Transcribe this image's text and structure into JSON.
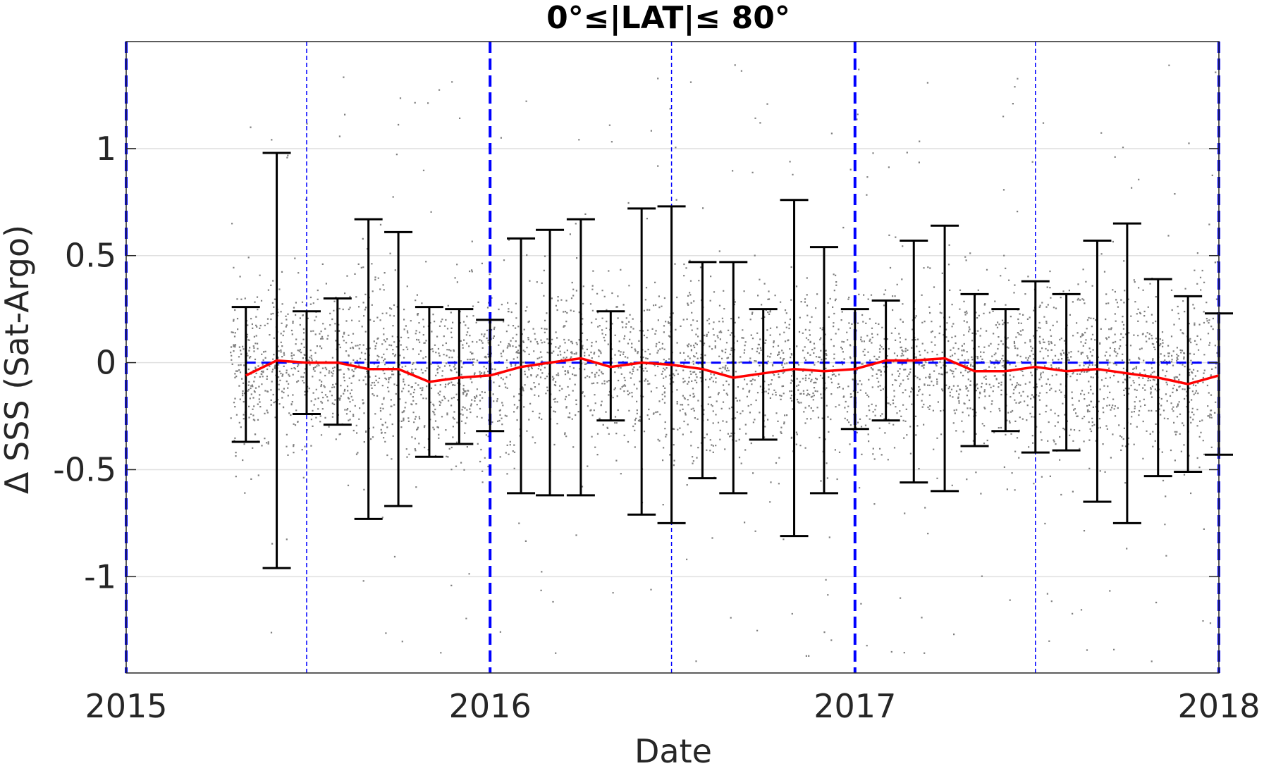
{
  "chart_data": {
    "type": "scatter",
    "title": "0°≤|LAT|≤ 80°",
    "xlabel": "Date",
    "ylabel": "Δ SSS (Sat-Argo)",
    "xlim": [
      "2015-01-01",
      "2018-01-01"
    ],
    "ylim": [
      -1.45,
      1.5
    ],
    "x_ticks": [
      "2015",
      "2016",
      "2017",
      "2018"
    ],
    "y_ticks": [
      {
        "value": 1,
        "label": "1"
      },
      {
        "value": 0.5,
        "label": "0.5"
      },
      {
        "value": 0,
        "label": "0"
      },
      {
        "value": -0.5,
        "label": "-0.5"
      },
      {
        "value": -1,
        "label": "-1"
      }
    ],
    "grid": "horizontal",
    "colors": {
      "scatter": "#7f7f7f",
      "mean_line": "#ff0000",
      "error_bars": "#000000",
      "reference_lines": "#0000ff",
      "grid": "#e0e0e0",
      "axes": "#262626"
    },
    "reference_lines": {
      "vertical_thick": [
        "2015-01-01",
        "2016-01-01",
        "2017-01-01",
        "2018-01-01"
      ],
      "vertical_thin": [
        "2015-07-01",
        "2016-07-01",
        "2017-07-01"
      ],
      "horizontal_zero": {
        "y": 0,
        "x_start": "2015-05-01",
        "x_end": "2018-01-01"
      }
    },
    "scatter_cloud": {
      "x_start": "2015-04-15",
      "x_end": "2018-01-01",
      "core_half_width": 0.35,
      "outlier_range": [
        -1.4,
        1.4
      ]
    },
    "series": [
      {
        "type": "line",
        "values": [
          {
            "x": "2015-05-01",
            "y": -0.06
          },
          {
            "x": "2015-06-01",
            "y": 0.01
          },
          {
            "x": "2015-07-01",
            "y": 0.0
          },
          {
            "x": "2015-08-01",
            "y": 0.0
          },
          {
            "x": "2015-09-01",
            "y": -0.03
          },
          {
            "x": "2015-10-01",
            "y": -0.03
          },
          {
            "x": "2015-11-01",
            "y": -0.09
          },
          {
            "x": "2015-12-01",
            "y": -0.07
          },
          {
            "x": "2016-01-01",
            "y": -0.06
          },
          {
            "x": "2016-02-01",
            "y": -0.02
          },
          {
            "x": "2016-03-01",
            "y": 0.0
          },
          {
            "x": "2016-04-01",
            "y": 0.02
          },
          {
            "x": "2016-05-01",
            "y": -0.02
          },
          {
            "x": "2016-06-01",
            "y": 0.0
          },
          {
            "x": "2016-07-01",
            "y": -0.01
          },
          {
            "x": "2016-08-01",
            "y": -0.03
          },
          {
            "x": "2016-09-01",
            "y": -0.07
          },
          {
            "x": "2016-10-01",
            "y": -0.05
          },
          {
            "x": "2016-11-01",
            "y": -0.03
          },
          {
            "x": "2016-12-01",
            "y": -0.04
          },
          {
            "x": "2017-01-01",
            "y": -0.03
          },
          {
            "x": "2017-02-01",
            "y": 0.01
          },
          {
            "x": "2017-03-01",
            "y": 0.01
          },
          {
            "x": "2017-04-01",
            "y": 0.02
          },
          {
            "x": "2017-05-01",
            "y": -0.04
          },
          {
            "x": "2017-06-01",
            "y": -0.04
          },
          {
            "x": "2017-07-01",
            "y": -0.02
          },
          {
            "x": "2017-08-01",
            "y": -0.04
          },
          {
            "x": "2017-09-01",
            "y": -0.03
          },
          {
            "x": "2017-10-01",
            "y": -0.05
          },
          {
            "x": "2017-11-01",
            "y": -0.07
          },
          {
            "x": "2017-12-01",
            "y": -0.1
          },
          {
            "x": "2018-01-01",
            "y": -0.06
          }
        ]
      },
      {
        "type": "errorbar",
        "values": [
          {
            "x": "2015-05-01",
            "low": -0.37,
            "high": 0.26
          },
          {
            "x": "2015-06-01",
            "low": -0.96,
            "high": 0.98
          },
          {
            "x": "2015-07-01",
            "low": -0.24,
            "high": 0.24
          },
          {
            "x": "2015-08-01",
            "low": -0.29,
            "high": 0.3
          },
          {
            "x": "2015-09-01",
            "low": -0.73,
            "high": 0.67
          },
          {
            "x": "2015-10-01",
            "low": -0.67,
            "high": 0.61
          },
          {
            "x": "2015-11-01",
            "low": -0.44,
            "high": 0.26
          },
          {
            "x": "2015-12-01",
            "low": -0.38,
            "high": 0.25
          },
          {
            "x": "2016-01-01",
            "low": -0.32,
            "high": 0.2
          },
          {
            "x": "2016-02-01",
            "low": -0.61,
            "high": 0.58
          },
          {
            "x": "2016-03-01",
            "low": -0.62,
            "high": 0.62
          },
          {
            "x": "2016-04-01",
            "low": -0.62,
            "high": 0.67
          },
          {
            "x": "2016-05-01",
            "low": -0.27,
            "high": 0.24
          },
          {
            "x": "2016-06-01",
            "low": -0.71,
            "high": 0.72
          },
          {
            "x": "2016-07-01",
            "low": -0.75,
            "high": 0.73
          },
          {
            "x": "2016-08-01",
            "low": -0.54,
            "high": 0.47
          },
          {
            "x": "2016-09-01",
            "low": -0.61,
            "high": 0.47
          },
          {
            "x": "2016-10-01",
            "low": -0.36,
            "high": 0.25
          },
          {
            "x": "2016-11-01",
            "low": -0.81,
            "high": 0.76
          },
          {
            "x": "2016-12-01",
            "low": -0.61,
            "high": 0.54
          },
          {
            "x": "2017-01-01",
            "low": -0.31,
            "high": 0.25
          },
          {
            "x": "2017-02-01",
            "low": -0.27,
            "high": 0.29
          },
          {
            "x": "2017-03-01",
            "low": -0.56,
            "high": 0.57
          },
          {
            "x": "2017-04-01",
            "low": -0.6,
            "high": 0.64
          },
          {
            "x": "2017-05-01",
            "low": -0.39,
            "high": 0.32
          },
          {
            "x": "2017-06-01",
            "low": -0.32,
            "high": 0.25
          },
          {
            "x": "2017-07-01",
            "low": -0.42,
            "high": 0.38
          },
          {
            "x": "2017-08-01",
            "low": -0.41,
            "high": 0.32
          },
          {
            "x": "2017-09-01",
            "low": -0.65,
            "high": 0.57
          },
          {
            "x": "2017-10-01",
            "low": -0.75,
            "high": 0.65
          },
          {
            "x": "2017-11-01",
            "low": -0.53,
            "high": 0.39
          },
          {
            "x": "2017-12-01",
            "low": -0.51,
            "high": 0.31
          },
          {
            "x": "2018-01-01",
            "low": -0.43,
            "high": 0.23
          }
        ]
      }
    ]
  }
}
